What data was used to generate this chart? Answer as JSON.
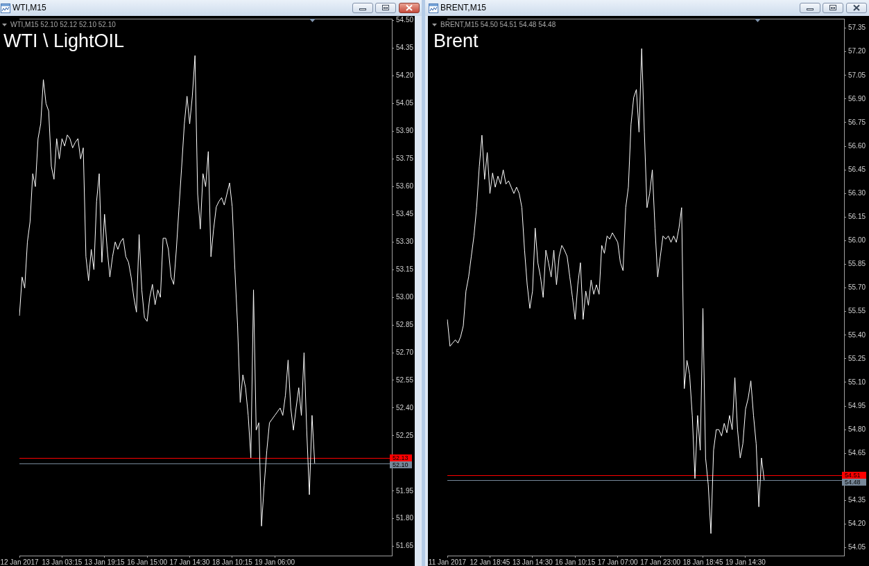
{
  "chart_data": [
    {
      "type": "line",
      "title": "WTI \\ LightOIL",
      "subtitle": "WTI,M15",
      "annotations": [
        "WTI,M15 52.10 52.12 52.10 52.10"
      ],
      "color": "#ffffff",
      "marker": "none",
      "categories": [
        "12 Jan 2017",
        null,
        null,
        null,
        null,
        null,
        null,
        null,
        null,
        null,
        null,
        null,
        null,
        null,
        null,
        null,
        "13 Jan 03:15",
        null,
        null,
        null,
        null,
        null,
        null,
        null,
        null,
        null,
        null,
        null,
        null,
        null,
        null,
        null,
        "13 Jan 19:15",
        null,
        null,
        null,
        null,
        null,
        null,
        null,
        null,
        null,
        null,
        null,
        null,
        null,
        null,
        null,
        "16 Jan 15:00",
        null,
        null,
        null,
        null,
        null,
        null,
        null,
        null,
        null,
        null,
        null,
        null,
        null,
        null,
        null,
        "17 Jan 14:30",
        null,
        null,
        null,
        null,
        null,
        null,
        null,
        null,
        null,
        null,
        null,
        null,
        null,
        null,
        null,
        "18 Jan 10:15",
        null,
        null,
        null,
        null,
        null,
        null,
        null,
        null,
        null,
        null,
        null,
        null,
        null,
        null,
        null,
        "19 Jan 06:00",
        null,
        null,
        null,
        null,
        null,
        null,
        null,
        null,
        null,
        null,
        null,
        null,
        null,
        null,
        null,
        null,
        null,
        null,
        null,
        null,
        null,
        null,
        null,
        null,
        null,
        null,
        null,
        null,
        null,
        null,
        null,
        null,
        null,
        null,
        null,
        null,
        null,
        null,
        null,
        null,
        null,
        null,
        null,
        null
      ],
      "values": [
        52.9,
        53.11,
        53.05,
        53.3,
        53.41,
        53.67,
        53.6,
        53.86,
        53.94,
        54.18,
        54.05,
        54.01,
        53.71,
        53.64,
        53.86,
        53.75,
        53.86,
        53.82,
        53.88,
        53.86,
        53.81,
        53.84,
        53.86,
        53.75,
        53.81,
        53.22,
        53.09,
        53.26,
        53.15,
        53.52,
        53.67,
        53.19,
        53.45,
        53.26,
        53.11,
        53.22,
        53.3,
        53.26,
        53.3,
        53.32,
        53.22,
        53.19,
        53.11,
        53.0,
        52.92,
        53.34,
        53.04,
        52.89,
        52.87,
        53.0,
        53.07,
        52.96,
        53.04,
        53.0,
        53.32,
        53.32,
        53.26,
        53.11,
        53.07,
        53.26,
        53.49,
        53.71,
        53.94,
        54.09,
        53.94,
        54.09,
        54.31,
        53.56,
        53.37,
        53.67,
        53.6,
        53.79,
        53.22,
        53.37,
        53.49,
        53.52,
        53.54,
        53.5,
        53.56,
        53.62,
        53.49,
        53.15,
        52.85,
        52.43,
        52.58,
        52.51,
        52.36,
        52.13,
        53.04,
        52.28,
        52.32,
        51.76,
        51.98,
        52.17,
        52.32,
        52.34,
        52.36,
        52.38,
        52.4,
        52.36,
        52.47,
        52.66,
        52.4,
        52.28,
        52.4,
        52.51,
        52.36,
        52.7,
        52.28,
        51.93,
        52.36,
        52.1,
        null,
        null,
        null,
        null,
        null,
        null,
        null,
        null,
        null,
        null,
        null,
        null,
        null,
        null,
        null,
        null,
        null,
        null,
        null,
        null,
        null,
        null,
        null,
        null,
        null,
        null,
        null,
        null,
        null
      ],
      "ylim": [
        51.6,
        54.51
      ],
      "yticks": [
        51.65,
        {
          "value": 51.8,
          "label": "51.80"
        },
        51.95,
        52.25,
        {
          "value": 52.4,
          "label": "52.40"
        },
        52.55,
        {
          "value": 52.7,
          "label": "52.70"
        },
        52.85,
        {
          "value": 53,
          "label": "53.00"
        },
        53.15,
        {
          "value": 53.3,
          "label": "53.30"
        },
        53.45,
        {
          "value": 53.6,
          "label": "53.60"
        },
        53.75,
        {
          "value": 53.9,
          "label": "53.90"
        },
        54.05,
        {
          "value": 54.2,
          "label": "54.20"
        },
        54.35,
        {
          "value": 54.5,
          "label": "54.50"
        }
      ],
      "ref_lines": [
        {
          "axis": "y",
          "value": 52.13,
          "label": "52.13",
          "color": "#ff0000"
        },
        {
          "axis": "y",
          "value": 52.1,
          "label": "52.10",
          "color": "#778899"
        }
      ]
    },
    {
      "type": "line",
      "title": "Brent",
      "subtitle": "BRENT,M15",
      "annotations": [
        "BRENT,M15 54.50 54.51 54.48 54.48"
      ],
      "color": "#ffffff",
      "marker": "none",
      "categories": [
        "11 Jan 2017",
        null,
        null,
        null,
        null,
        null,
        null,
        null,
        null,
        null,
        null,
        null,
        null,
        null,
        null,
        null,
        "12 Jan 18:45",
        null,
        null,
        null,
        null,
        null,
        null,
        null,
        null,
        null,
        null,
        null,
        null,
        null,
        null,
        null,
        "13 Jan 14:30",
        null,
        null,
        null,
        null,
        null,
        null,
        null,
        null,
        null,
        null,
        null,
        null,
        null,
        null,
        null,
        "16 Jan 10:15",
        null,
        null,
        null,
        null,
        null,
        null,
        null,
        null,
        null,
        null,
        null,
        null,
        null,
        null,
        null,
        "17 Jan 07:00",
        null,
        null,
        null,
        null,
        null,
        null,
        null,
        null,
        null,
        null,
        null,
        null,
        null,
        null,
        null,
        "17 Jan 23:00",
        null,
        null,
        null,
        null,
        null,
        null,
        null,
        null,
        null,
        null,
        null,
        null,
        null,
        null,
        null,
        "18 Jan 18:45",
        null,
        null,
        null,
        null,
        null,
        null,
        null,
        null,
        null,
        null,
        null,
        null,
        null,
        null,
        null,
        "19 Jan 14:30",
        null,
        null,
        null,
        null,
        null,
        null,
        null,
        null,
        null,
        null,
        null,
        null,
        null,
        null,
        null,
        null,
        null,
        null,
        null,
        null,
        null,
        null,
        null,
        null,
        null,
        null,
        null,
        null,
        null,
        null,
        null,
        null,
        null,
        null,
        null,
        null,
        null
      ],
      "values": [
        55.5,
        55.33,
        55.35,
        55.37,
        55.35,
        55.39,
        55.46,
        55.68,
        55.77,
        55.9,
        56.03,
        56.21,
        56.47,
        56.67,
        56.39,
        56.56,
        56.3,
        56.43,
        56.34,
        56.41,
        56.36,
        56.45,
        56.36,
        56.38,
        56.34,
        56.3,
        56.34,
        56.3,
        56.21,
        55.94,
        55.72,
        55.57,
        55.68,
        56.08,
        55.86,
        55.77,
        55.64,
        55.94,
        55.86,
        55.77,
        55.94,
        55.72,
        55.9,
        55.97,
        55.94,
        55.9,
        55.77,
        55.64,
        55.5,
        55.72,
        55.86,
        55.5,
        55.68,
        55.59,
        55.75,
        55.66,
        55.72,
        55.66,
        55.97,
        55.92,
        56.03,
        56.01,
        56.05,
        56.02,
        55.99,
        55.86,
        55.81,
        56.21,
        56.34,
        56.74,
        56.91,
        56.96,
        56.69,
        57.22,
        56.69,
        56.21,
        56.3,
        56.45,
        56.08,
        55.77,
        55.9,
        56.03,
        56.01,
        56.03,
        55.99,
        56.03,
        55.99,
        56.08,
        56.21,
        55.06,
        55.24,
        55.15,
        54.89,
        54.49,
        54.89,
        54.67,
        55.57,
        54.62,
        54.45,
        54.14,
        54.67,
        54.8,
        54.8,
        54.76,
        54.84,
        54.78,
        54.89,
        54.8,
        55.13,
        54.8,
        54.62,
        54.71,
        54.93,
        55.0,
        55.11,
        54.89,
        54.71,
        54.31,
        54.62,
        54.48,
        null,
        null,
        null,
        null,
        null,
        null,
        null,
        null,
        null,
        null,
        null,
        null,
        null,
        null,
        null,
        null,
        null,
        null,
        null,
        null,
        null,
        null,
        null,
        null,
        null,
        null,
        null,
        null,
        null,
        null
      ],
      "ylim": [
        54.0,
        57.41
      ],
      "yticks": [
        54.05,
        {
          "value": 54.2,
          "label": "54.20"
        },
        54.35,
        54.65,
        {
          "value": 54.8,
          "label": "54.80"
        },
        54.95,
        {
          "value": 55.1,
          "label": "55.10"
        },
        55.25,
        {
          "value": 55.4,
          "label": "55.40"
        },
        55.55,
        {
          "value": 55.7,
          "label": "55.70"
        },
        55.85,
        {
          "value": 56,
          "label": "56.00"
        },
        56.15,
        {
          "value": 56.3,
          "label": "56.30"
        },
        56.45,
        {
          "value": 56.6,
          "label": "56.60"
        },
        56.75,
        {
          "value": 56.9,
          "label": "56.90"
        },
        57.05,
        {
          "value": 57.2,
          "label": "57.20"
        },
        57.35
      ],
      "ref_lines": [
        {
          "axis": "y",
          "value": 54.51,
          "label": "54.51",
          "color": "#ff0000"
        },
        {
          "axis": "y",
          "value": 54.48,
          "label": "54.48",
          "color": "#778899"
        }
      ]
    }
  ]
}
